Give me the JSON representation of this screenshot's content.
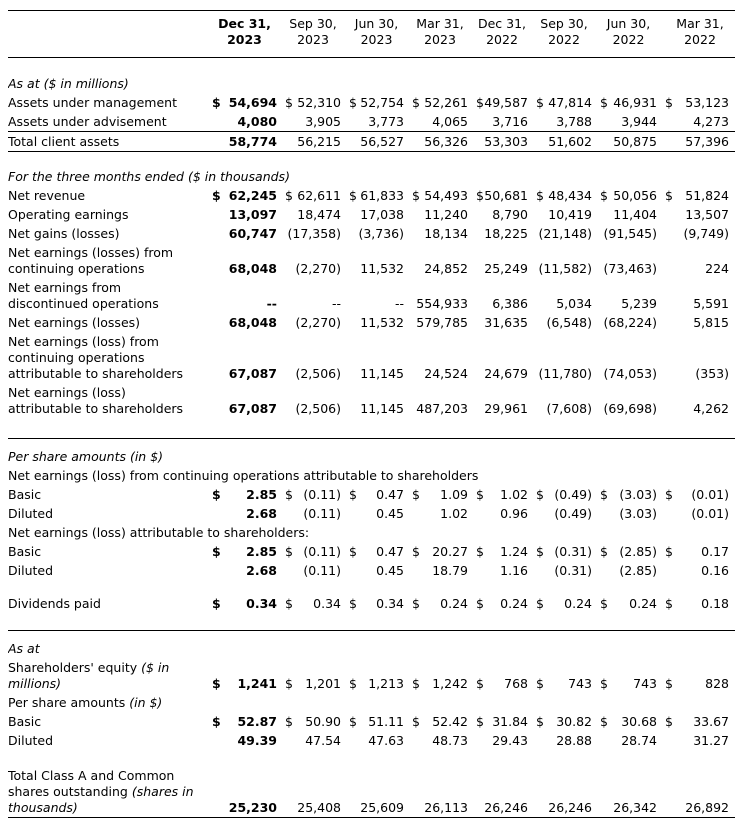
{
  "currency_symbol": "$",
  "table": {
    "col_headers": [
      {
        "month": "Dec 31,",
        "year": "2023",
        "bold": true
      },
      {
        "month": "Sep 30,",
        "year": "2023"
      },
      {
        "month": "Jun 30,",
        "year": "2023"
      },
      {
        "month": "Mar 31,",
        "year": "2023"
      },
      {
        "month": "Dec 31,",
        "year": "2022"
      },
      {
        "month": "Sep 30,",
        "year": "2022"
      },
      {
        "month": "Jun 30,",
        "year": "2022"
      },
      {
        "month": "Mar 31,",
        "year": "2022"
      }
    ],
    "rows": [
      {
        "type": "spacer",
        "h": 16
      },
      {
        "type": "section",
        "label": "As at ($ in millions)"
      },
      {
        "type": "data",
        "label": "Assets under management",
        "dollar": true,
        "values": [
          "54,694",
          "52,310",
          "52,754",
          "52,261",
          "49,587",
          "47,814",
          "46,931",
          "53,123"
        ]
      },
      {
        "type": "data",
        "label": "Assets under advisement",
        "values": [
          "4,080",
          "3,905",
          "3,773",
          "4,065",
          "3,716",
          "3,788",
          "3,944",
          "4,273"
        ]
      },
      {
        "type": "data",
        "label": "Total client assets",
        "line_above": true,
        "line_below": true,
        "values": [
          "58,774",
          "56,215",
          "56,527",
          "56,326",
          "53,303",
          "51,602",
          "50,875",
          "57,396"
        ]
      },
      {
        "type": "spacer",
        "h": 16
      },
      {
        "type": "section",
        "label": "For the three months ended ($ in thousands)"
      },
      {
        "type": "data",
        "label": "Net revenue",
        "dollar": true,
        "values": [
          "62,245",
          "62,611",
          "61,833",
          "54,493",
          "50,681",
          "48,434",
          "50,056",
          "51,824"
        ]
      },
      {
        "type": "data",
        "label": "Operating earnings",
        "values": [
          "13,097",
          "18,474",
          "17,038",
          "11,240",
          "8,790",
          "10,419",
          "11,404",
          "13,507"
        ]
      },
      {
        "type": "data",
        "label": "Net gains (losses)",
        "values": [
          "60,747",
          "(17,358)",
          "(3,736)",
          "18,134",
          "18,225",
          "(21,148)",
          "(91,545)",
          "(9,749)"
        ]
      },
      {
        "type": "data",
        "label": "Net earnings (losses) from\ncontinuing operations",
        "values": [
          "68,048",
          "(2,270)",
          "11,532",
          "24,852",
          "25,249",
          "(11,582)",
          "(73,463)",
          "224"
        ]
      },
      {
        "type": "data",
        "label": "Net earnings from\ndiscontinued operations",
        "values": [
          "--",
          "--",
          "--",
          "554,933",
          "6,386",
          "5,034",
          "5,239",
          "5,591"
        ]
      },
      {
        "type": "data",
        "label": "Net earnings (losses)",
        "values": [
          "68,048",
          "(2,270)",
          "11,532",
          "579,785",
          "31,635",
          "(6,548)",
          "(68,224)",
          "5,815"
        ]
      },
      {
        "type": "data",
        "label": "Net earnings (loss) from\ncontinuing operations\nattributable to shareholders",
        "values": [
          "67,087",
          "(2,506)",
          "11,145",
          "24,524",
          "24,679",
          "(11,780)",
          "(74,053)",
          "(353)"
        ]
      },
      {
        "type": "data",
        "label": "Net earnings (loss)\nattributable to shareholders",
        "values": [
          "67,087",
          "(2,506)",
          "11,145",
          "487,203",
          "29,961",
          "(7,608)",
          "(69,698)",
          "4,262"
        ]
      },
      {
        "type": "spacer",
        "h": 20
      },
      {
        "type": "rule"
      },
      {
        "type": "spacer",
        "h": 8
      },
      {
        "type": "section",
        "label": "Per share amounts (in $)"
      },
      {
        "type": "sub",
        "label": "Net earnings (loss) from continuing operations attributable to shareholders"
      },
      {
        "type": "data",
        "label": "Basic",
        "dollar": true,
        "values": [
          "2.85",
          "(0.11)",
          "0.47",
          "1.09",
          "1.02",
          "(0.49)",
          "(3.03)",
          "(0.01)"
        ]
      },
      {
        "type": "data",
        "label": "Diluted",
        "values": [
          "2.68",
          "(0.11)",
          "0.45",
          "1.02",
          "0.96",
          "(0.49)",
          "(3.03)",
          "(0.01)"
        ]
      },
      {
        "type": "sub",
        "label": "Net earnings (loss) attributable to shareholders:"
      },
      {
        "type": "data",
        "label": "Basic",
        "dollar": true,
        "values": [
          "2.85",
          "(0.11)",
          "0.47",
          "20.27",
          "1.24",
          "(0.31)",
          "(2.85)",
          "0.17"
        ]
      },
      {
        "type": "data",
        "label": "Diluted",
        "values": [
          "2.68",
          "(0.11)",
          "0.45",
          "18.79",
          "1.16",
          "(0.31)",
          "(2.85)",
          "0.16"
        ]
      },
      {
        "type": "spacer",
        "h": 14
      },
      {
        "type": "data",
        "label": "Dividends paid",
        "dollar": true,
        "values": [
          "0.34",
          "0.34",
          "0.34",
          "0.24",
          "0.24",
          "0.24",
          "0.24",
          "0.18"
        ]
      },
      {
        "type": "spacer",
        "h": 18
      },
      {
        "type": "rule"
      },
      {
        "type": "spacer",
        "h": 8
      },
      {
        "type": "section",
        "label": "As at"
      },
      {
        "type": "data",
        "label": "Shareholders' equity ",
        "note": "($ in millions)",
        "dollar": true,
        "values": [
          "1,241",
          "1,201",
          "1,213",
          "1,242",
          "768",
          "743",
          "743",
          "828"
        ]
      },
      {
        "type": "data",
        "label": "Per share amounts ",
        "note": "(in $)",
        "values": []
      },
      {
        "type": "data",
        "label": "Basic",
        "dollar": true,
        "values": [
          "52.87",
          "50.90",
          "51.11",
          "52.42",
          "31.84",
          "30.82",
          "30.68",
          "33.67"
        ]
      },
      {
        "type": "data",
        "label": "Diluted",
        "values": [
          "49.39",
          "47.54",
          "47.63",
          "48.73",
          "29.43",
          "28.88",
          "28.74",
          "31.27"
        ]
      },
      {
        "type": "spacer",
        "h": 16
      },
      {
        "type": "data",
        "label": "Total Class A and Common shares outstanding ",
        "note": "(shares in thousands)",
        "line_below": true,
        "values": [
          "25,230",
          "25,408",
          "25,609",
          "26,113",
          "26,246",
          "26,246",
          "26,342",
          "26,892"
        ]
      }
    ]
  }
}
